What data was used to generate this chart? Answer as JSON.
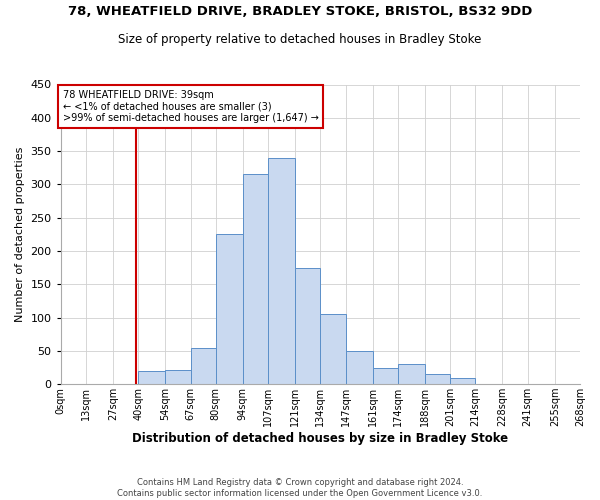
{
  "title1": "78, WHEATFIELD DRIVE, BRADLEY STOKE, BRISTOL, BS32 9DD",
  "title2": "Size of property relative to detached houses in Bradley Stoke",
  "xlabel": "Distribution of detached houses by size in Bradley Stoke",
  "ylabel": "Number of detached properties",
  "footer1": "Contains HM Land Registry data © Crown copyright and database right 2024.",
  "footer2": "Contains public sector information licensed under the Open Government Licence v3.0.",
  "annotation_line1": "78 WHEATFIELD DRIVE: 39sqm",
  "annotation_line2": "← <1% of detached houses are smaller (3)",
  "annotation_line3": ">99% of semi-detached houses are larger (1,647) →",
  "property_size": 39,
  "bar_color": "#c9d9f0",
  "bar_edge_color": "#5b8fc9",
  "vline_color": "#cc0000",
  "annotation_box_edge": "#cc0000",
  "annotation_box_face": "#ffffff",
  "grid_color": "#d0d0d0",
  "bin_labels": [
    "0sqm",
    "13sqm",
    "27sqm",
    "40sqm",
    "54sqm",
    "67sqm",
    "80sqm",
    "94sqm",
    "107sqm",
    "121sqm",
    "134sqm",
    "147sqm",
    "161sqm",
    "174sqm",
    "188sqm",
    "201sqm",
    "214sqm",
    "228sqm",
    "241sqm",
    "255sqm",
    "268sqm"
  ],
  "bin_edges": [
    0,
    13,
    27,
    40,
    54,
    67,
    80,
    94,
    107,
    121,
    134,
    147,
    161,
    174,
    188,
    201,
    214,
    228,
    241,
    255,
    268
  ],
  "bar_heights": [
    0,
    1,
    0,
    20,
    22,
    55,
    225,
    315,
    340,
    175,
    105,
    50,
    25,
    30,
    15,
    10,
    1,
    1,
    0,
    0,
    1
  ],
  "ylim": [
    0,
    450
  ],
  "yticks": [
    0,
    50,
    100,
    150,
    200,
    250,
    300,
    350,
    400,
    450
  ],
  "background_color": "#ffffff"
}
